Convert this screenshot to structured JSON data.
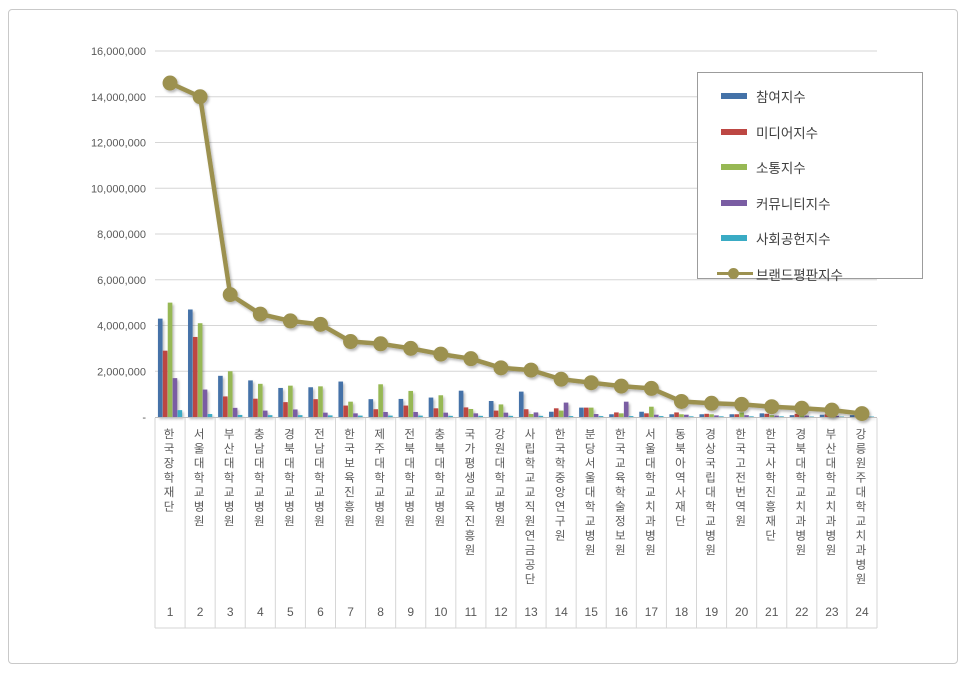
{
  "chart_data": {
    "type": "bar",
    "combo": "grouped bars with overlaid line series",
    "title": "",
    "xlabel": "",
    "ylabel": "",
    "categories": [
      "한국장학재단",
      "서울대학교병원",
      "부산대학교병원",
      "충남대학교병원",
      "경북대학교병원",
      "전남대학교병원",
      "한국보육진흥원",
      "제주대학교병원",
      "전북대학교병원",
      "충북대학교병원",
      "국가평생교육진흥원",
      "강원대학교병원",
      "사립학교교직원연금공단",
      "한국학중앙연구원",
      "분당서울대학교병원",
      "한국교육학술정보원",
      "서울대학교치과병원",
      "동북아역사재단",
      "경상국립대학교병원",
      "한국고전번역원",
      "한국사학진흥재단",
      "경북대학교치과병원",
      "부산대학교치과병원",
      "강릉원주대학교치과병원"
    ],
    "ranks": [
      "1",
      "2",
      "3",
      "4",
      "5",
      "6",
      "7",
      "8",
      "9",
      "10",
      "11",
      "12",
      "13",
      "14",
      "15",
      "16",
      "17",
      "18",
      "19",
      "20",
      "21",
      "22",
      "23",
      "24"
    ],
    "series": [
      {
        "name": "참여지수",
        "type": "bar",
        "color": "#4472a8",
        "values": [
          4300000,
          4700000,
          1800000,
          1600000,
          1270000,
          1300000,
          1550000,
          780000,
          790000,
          850000,
          1150000,
          700000,
          1110000,
          230000,
          410000,
          120000,
          230000,
          120000,
          120000,
          120000,
          160000,
          80000,
          100000,
          80000
        ]
      },
      {
        "name": "미디어지수",
        "type": "bar",
        "color": "#bd4743",
        "values": [
          2900000,
          3500000,
          900000,
          800000,
          650000,
          780000,
          500000,
          340000,
          500000,
          380000,
          420000,
          280000,
          340000,
          380000,
          410000,
          200000,
          160000,
          200000,
          140000,
          120000,
          140000,
          140000,
          120000,
          80000
        ]
      },
      {
        "name": "소통지수",
        "type": "bar",
        "color": "#97b854",
        "values": [
          5000000,
          4100000,
          2000000,
          1450000,
          1370000,
          1340000,
          670000,
          1430000,
          1140000,
          950000,
          350000,
          550000,
          130000,
          280000,
          410000,
          160000,
          450000,
          120000,
          120000,
          200000,
          80000,
          80000,
          80000,
          60000
        ]
      },
      {
        "name": "커뮤니티지수",
        "type": "bar",
        "color": "#7a5da3",
        "values": [
          1700000,
          1200000,
          400000,
          280000,
          330000,
          190000,
          160000,
          220000,
          220000,
          190000,
          160000,
          190000,
          200000,
          630000,
          130000,
          670000,
          100000,
          100000,
          70000,
          80000,
          60000,
          60000,
          50000,
          40000
        ]
      },
      {
        "name": "사회공헌지수",
        "type": "bar",
        "color": "#3aabc4",
        "values": [
          300000,
          130000,
          90000,
          80000,
          80000,
          70000,
          60000,
          60000,
          60000,
          50000,
          50000,
          50000,
          50000,
          40000,
          40000,
          40000,
          40000,
          30000,
          30000,
          30000,
          30000,
          20000,
          20000,
          20000
        ]
      },
      {
        "name": "브랜드평판지수",
        "type": "line",
        "color": "#9c9150",
        "values": [
          14600000,
          14000000,
          5350000,
          4500000,
          4200000,
          4050000,
          3300000,
          3200000,
          3000000,
          2750000,
          2550000,
          2150000,
          2050000,
          1650000,
          1500000,
          1350000,
          1250000,
          680000,
          600000,
          550000,
          450000,
          380000,
          300000,
          150000
        ]
      }
    ],
    "y_axis": {
      "min": 0,
      "max": 16000000,
      "step": 2000000,
      "tick_labels": [
        "-",
        "2,000,000",
        "4,000,000",
        "6,000,000",
        "8,000,000",
        "10,000,000",
        "12,000,000",
        "14,000,000",
        "16,000,000"
      ]
    },
    "legend_position": "top-right",
    "grid": true,
    "colors": {
      "gridline": "#d6d6d6",
      "axis_line": "#c0c0c0",
      "separator": "#d6d6d6",
      "tick_text": "#595959",
      "legend_text": "#404040",
      "legend_border": "#9c9c9c",
      "frame_border": "#c9c9c9"
    }
  }
}
